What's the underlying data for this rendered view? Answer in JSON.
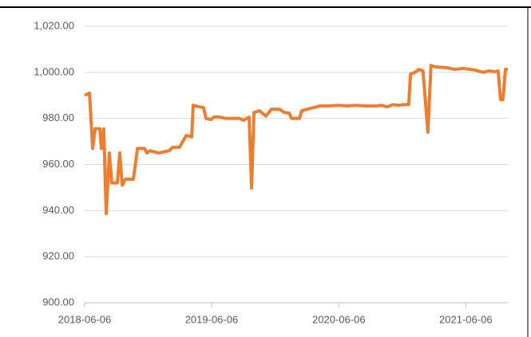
{
  "chart_data": {
    "type": "line",
    "x": [
      "2018-06-06",
      "2018-06-20",
      "2018-06-29",
      "2018-07-06",
      "2018-07-20",
      "2018-07-24",
      "2018-07-31",
      "2018-08-07",
      "2018-08-16",
      "2018-08-23",
      "2018-09-08",
      "2018-09-15",
      "2018-09-22",
      "2018-10-01",
      "2018-10-24",
      "2018-11-05",
      "2018-11-25",
      "2018-12-02",
      "2018-12-11",
      "2019-01-05",
      "2019-02-04",
      "2019-02-14",
      "2019-03-06",
      "2019-03-25",
      "2019-04-10",
      "2019-04-14",
      "2019-05-03",
      "2019-05-14",
      "2019-05-21",
      "2019-06-04",
      "2019-06-13",
      "2019-06-29",
      "2019-07-17",
      "2019-08-25",
      "2019-09-06",
      "2019-09-22",
      "2019-09-29",
      "2019-10-06",
      "2019-10-22",
      "2019-11-09",
      "2019-11-25",
      "2019-12-18",
      "2020-01-01",
      "2020-01-15",
      "2020-01-22",
      "2020-02-14",
      "2020-02-20",
      "2020-03-07",
      "2020-03-26",
      "2020-04-11",
      "2020-05-04",
      "2020-06-06",
      "2020-06-30",
      "2020-07-23",
      "2020-08-22",
      "2020-09-19",
      "2020-10-07",
      "2020-10-23",
      "2020-11-08",
      "2020-11-26",
      "2020-12-08",
      "2020-12-24",
      "2020-12-29",
      "2021-01-11",
      "2021-01-23",
      "2021-02-03",
      "2021-02-17",
      "2021-02-26",
      "2021-03-10",
      "2021-04-13",
      "2021-05-06",
      "2021-05-29",
      "2021-07-03",
      "2021-07-26",
      "2021-08-11",
      "2021-08-29",
      "2021-09-07",
      "2021-09-14",
      "2021-09-21",
      "2021-09-28",
      "2021-10-05"
    ],
    "series": [
      {
        "color": "#ed7d31",
        "values": [
          990,
          991,
          967,
          975.5,
          975.5,
          967,
          975.5,
          938.7,
          965,
          952,
          952,
          965,
          951,
          953.6,
          953.6,
          967,
          967,
          965,
          966,
          965,
          966,
          967.5,
          967.5,
          972.6,
          972,
          985.7,
          985,
          984.7,
          980,
          979.5,
          980.6,
          980.6,
          980,
          980,
          979.2,
          980.6,
          949.8,
          982.6,
          983.3,
          981,
          984,
          984,
          982.6,
          982.3,
          980,
          980,
          983.3,
          984,
          984.7,
          985.4,
          985.4,
          985.7,
          985.4,
          985.7,
          985.4,
          985.4,
          985.7,
          985,
          986,
          985.7,
          986,
          986,
          999.2,
          1000,
          1001.3,
          1000.6,
          974,
          1003,
          1002.4,
          1002,
          1001.3,
          1001.7,
          1001,
          1000,
          1000.6,
          1000.3,
          1000.6,
          988.2,
          988.2,
          1001.3,
          1001.3
        ]
      }
    ],
    "xlim": [
      "2018-06-06",
      "2021-10-05"
    ],
    "xticks": [
      "2018-06-06",
      "2019-06-06",
      "2020-06-06",
      "2021-06-06"
    ],
    "ylim": [
      900,
      1020
    ],
    "yticks": [
      {
        "value": 900,
        "label": "900.00"
      },
      {
        "value": 920,
        "label": "920.00"
      },
      {
        "value": 940,
        "label": "940.00"
      },
      {
        "value": 960,
        "label": "960.00"
      },
      {
        "value": 980,
        "label": "980.00"
      },
      {
        "value": 1000,
        "label": "1,000.00"
      },
      {
        "value": 1020,
        "label": "1,020.00"
      }
    ],
    "grid": true
  }
}
